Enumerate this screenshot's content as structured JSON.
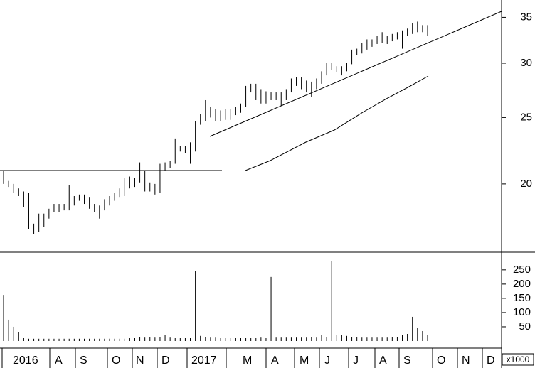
{
  "chart_data": {
    "type": "hilo",
    "log_scale": true,
    "color": "#000000",
    "ylim": [
      15.9,
      37.1
    ],
    "yticks": [
      20,
      25,
      30,
      35
    ],
    "high": [
      20.9,
      20.2,
      20.0,
      19.7,
      19.5,
      19.4,
      17.5,
      18.1,
      18.1,
      18.4,
      18.7,
      18.7,
      18.7,
      19.9,
      19.2,
      19.3,
      19.3,
      19.1,
      18.7,
      18.6,
      19.0,
      19.2,
      19.4,
      19.7,
      20.4,
      20.5,
      20.4,
      21.5,
      20.9,
      20.1,
      20.0,
      21.4,
      21.5,
      21.6,
      23.3,
      22.7,
      22.7,
      23.0,
      24.7,
      25.3,
      26.5,
      25.9,
      25.7,
      25.6,
      25.7,
      25.7,
      25.9,
      26.2,
      27.8,
      28.0,
      28.0,
      27.5,
      27.3,
      27.2,
      27.2,
      27.2,
      27.5,
      28.5,
      28.6,
      28.6,
      28.3,
      28.2,
      28.5,
      29.2,
      30.0,
      30.0,
      29.7,
      29.7,
      30.0,
      31.4,
      31.5,
      32.1,
      32.5,
      32.5,
      32.9,
      33.3,
      32.9,
      33.1,
      33.3,
      33.5,
      33.7,
      34.3,
      34.5,
      34.1,
      34.1
    ],
    "low": [
      20.0,
      19.8,
      19.4,
      19.2,
      18.5,
      17.2,
      16.9,
      17.0,
      17.3,
      17.8,
      18.2,
      18.2,
      18.3,
      18.3,
      18.6,
      18.9,
      18.7,
      18.4,
      18.2,
      17.8,
      18.3,
      18.6,
      18.9,
      19.1,
      19.2,
      19.7,
      19.8,
      20.1,
      19.5,
      19.5,
      19.3,
      19.4,
      20.9,
      21.1,
      21.4,
      22.3,
      22.2,
      21.4,
      22.3,
      24.4,
      24.7,
      25.0,
      24.7,
      24.7,
      24.8,
      24.8,
      25.2,
      25.4,
      25.9,
      27.2,
      26.5,
      26.2,
      26.2,
      26.5,
      26.5,
      26.0,
      26.5,
      27.2,
      27.8,
      27.5,
      27.2,
      26.8,
      27.5,
      28.0,
      28.8,
      29.3,
      29.1,
      28.8,
      29.2,
      29.9,
      30.8,
      31.0,
      31.4,
      31.7,
      32.0,
      32.1,
      32.0,
      32.3,
      32.5,
      31.5,
      32.9,
      33.1,
      33.3,
      33.3,
      32.9
    ],
    "volume": {
      "ylim": [
        0,
        312
      ],
      "yticks": [
        50,
        100,
        150,
        200,
        250
      ],
      "unit_label": "x1000",
      "values": [
        162,
        75,
        50,
        30,
        10,
        8,
        8,
        8,
        8,
        8,
        8,
        8,
        8,
        8,
        8,
        8,
        8,
        8,
        8,
        8,
        8,
        8,
        8,
        8,
        8,
        10,
        10,
        15,
        12,
        15,
        12,
        15,
        20,
        12,
        10,
        10,
        10,
        10,
        245,
        18,
        15,
        12,
        12,
        10,
        10,
        10,
        10,
        10,
        10,
        10,
        10,
        12,
        10,
        225,
        12,
        12,
        12,
        12,
        12,
        12,
        12,
        15,
        12,
        20,
        15,
        282,
        20,
        20,
        18,
        15,
        15,
        12,
        12,
        12,
        12,
        12,
        12,
        15,
        15,
        20,
        25,
        85,
        45,
        35,
        20
      ]
    },
    "x_labels": [
      "2016",
      "A",
      "S",
      "O",
      "N",
      "D",
      "2017",
      "M",
      "A",
      "M",
      "J",
      "J",
      "A",
      "S",
      "O",
      "N",
      "D"
    ]
  }
}
